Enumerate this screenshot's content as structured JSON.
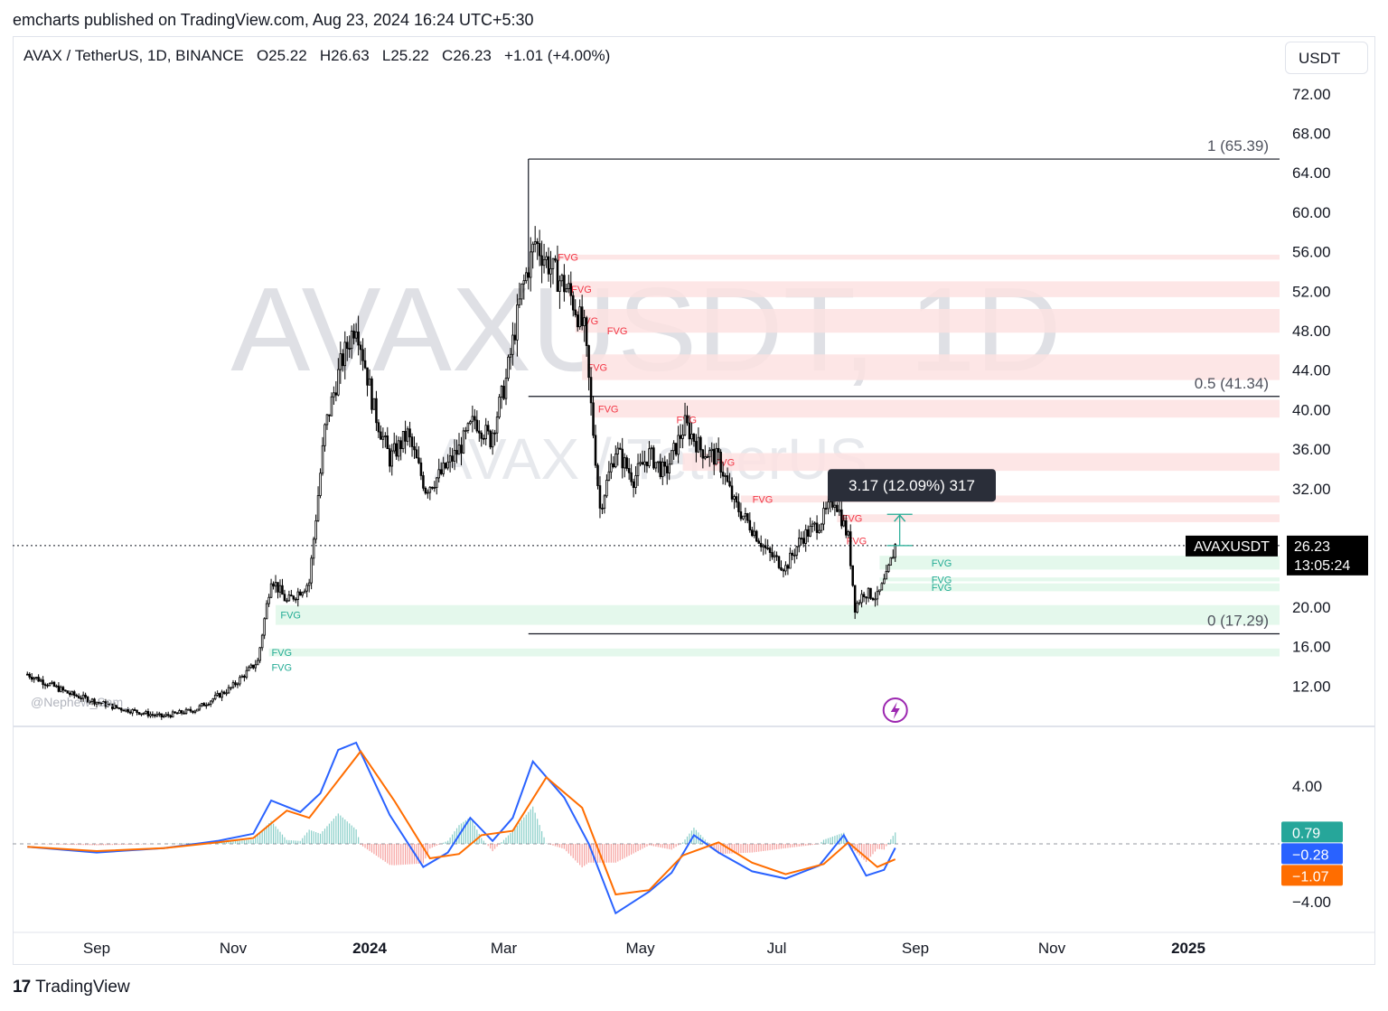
{
  "header": {
    "published_by": "emcharts published on TradingView.com, Aug 23, 2024 16:24 UTC+5:30"
  },
  "legend": {
    "symbol": "AVAX / TetherUS, 1D, BINANCE",
    "open": "O25.22",
    "high": "H26.63",
    "low": "L25.22",
    "close": "C26.23",
    "change": "+1.01 (+4.00%)"
  },
  "currency_button": "USDT",
  "watermark": {
    "main": "AVAXUSDT, 1D",
    "sub": "AVAX / TetherUS"
  },
  "author_tag": "@Nephew_Sam_",
  "footer": {
    "brand": "TradingView",
    "mark": "17"
  },
  "colors": {
    "bear_fvg": "#fde2e2",
    "bull_fvg": "#dff7e9",
    "bear_label": "#f23645",
    "bull_label": "#22ab94",
    "macd": "#2962ff",
    "signal": "#ff6d00",
    "hist_pos": "#26a69a",
    "hist_neg": "#ef5350",
    "last_price_bg": "#000000"
  },
  "chart_data": [
    {
      "type": "candlestick",
      "title": "AVAXUSDT, 1D",
      "ylim": [
        8,
        74
      ],
      "y_ticks": [
        "12.00",
        "16.00",
        "20.00",
        "24.00",
        "28.00",
        "32.00",
        "36.00",
        "40.00",
        "44.00",
        "48.00",
        "52.00",
        "56.00",
        "60.00",
        "64.00",
        "68.00",
        "72.00"
      ],
      "x_ticks": [
        "Sep",
        "Nov",
        "2024",
        "Mar",
        "May",
        "Jul",
        "Sep",
        "Nov",
        "2025"
      ],
      "x_tick_dates": [
        "2023-09-01",
        "2023-11-01",
        "2024-01-01",
        "2024-03-01",
        "2024-05-01",
        "2024-07-01",
        "2024-09-01",
        "2024-11-01",
        "2025-01-01"
      ],
      "price_keypoints": [
        [
          "2023-08-01",
          13.2
        ],
        [
          "2023-08-20",
          11.2
        ],
        [
          "2023-09-10",
          9.8
        ],
        [
          "2023-09-30",
          8.9
        ],
        [
          "2023-10-15",
          9.6
        ],
        [
          "2023-10-31",
          11.8
        ],
        [
          "2023-11-12",
          14.5
        ],
        [
          "2023-11-18",
          23.0
        ],
        [
          "2023-11-25",
          20.5
        ],
        [
          "2023-12-05",
          22.5
        ],
        [
          "2023-12-12",
          38.0
        ],
        [
          "2023-12-19",
          44.5
        ],
        [
          "2023-12-26",
          49.0
        ],
        [
          "2024-01-03",
          40.0
        ],
        [
          "2024-01-10",
          35.0
        ],
        [
          "2024-01-18",
          37.5
        ],
        [
          "2024-01-26",
          32.0
        ],
        [
          "2024-02-02",
          33.5
        ],
        [
          "2024-02-10",
          36.0
        ],
        [
          "2024-02-17",
          39.0
        ],
        [
          "2024-02-24",
          37.0
        ],
        [
          "2024-03-02",
          43.0
        ],
        [
          "2024-03-09",
          52.0
        ],
        [
          "2024-03-15",
          57.0
        ],
        [
          "2024-03-23",
          54.0
        ],
        [
          "2024-03-30",
          52.0
        ],
        [
          "2024-04-06",
          48.0
        ],
        [
          "2024-04-13",
          30.0
        ],
        [
          "2024-04-20",
          36.0
        ],
        [
          "2024-04-28",
          33.0
        ],
        [
          "2024-05-05",
          35.5
        ],
        [
          "2024-05-12",
          33.5
        ],
        [
          "2024-05-21",
          38.5
        ],
        [
          "2024-05-28",
          36.0
        ],
        [
          "2024-06-05",
          35.0
        ],
        [
          "2024-06-12",
          30.5
        ],
        [
          "2024-06-20",
          28.0
        ],
        [
          "2024-06-27",
          25.5
        ],
        [
          "2024-07-05",
          24.0
        ],
        [
          "2024-07-12",
          27.0
        ],
        [
          "2024-07-20",
          28.5
        ],
        [
          "2024-07-27",
          31.0
        ],
        [
          "2024-08-02",
          27.0
        ],
        [
          "2024-08-05",
          20.0
        ],
        [
          "2024-08-09",
          21.5
        ],
        [
          "2024-08-15",
          21.0
        ],
        [
          "2024-08-19",
          23.0
        ],
        [
          "2024-08-23",
          26.23
        ]
      ],
      "current_price": {
        "label": "AVAXUSDT",
        "value": "26.23",
        "countdown": "13:05:24",
        "value_num": 26.23
      },
      "fibonacci": [
        {
          "label": "1 (65.39)",
          "value": 65.39
        },
        {
          "label": "0.5 (41.34)",
          "value": 41.34
        },
        {
          "label": "0 (17.29)",
          "value": 17.29
        }
      ],
      "fib_start_date": "2024-03-12",
      "fvg_zones": [
        {
          "kind": "bear",
          "low": 55.2,
          "high": 55.7,
          "start": "2024-03-25",
          "label_date": "2024-03-30"
        },
        {
          "kind": "bear",
          "low": 51.4,
          "high": 53.0,
          "start": "2024-03-30",
          "label_date": "2024-04-05"
        },
        {
          "kind": "bear",
          "low": 47.8,
          "high": 50.2,
          "start": "2024-04-02",
          "label_date": "2024-04-08"
        },
        {
          "kind": "bear",
          "low": 43.0,
          "high": 45.6,
          "start": "2024-04-05",
          "label_date": "2024-04-12"
        },
        {
          "kind": "bear",
          "low": 39.2,
          "high": 41.0,
          "start": "2024-04-10",
          "label_date": "2024-04-17"
        },
        {
          "kind": "bear",
          "low": 33.8,
          "high": 35.6,
          "start": "2024-05-20",
          "label_date": "2024-06-08"
        },
        {
          "kind": "bear",
          "low": 30.6,
          "high": 31.3,
          "start": "2024-06-15",
          "label_date": "2024-06-25"
        },
        {
          "kind": "bear",
          "low": 28.6,
          "high": 29.4,
          "start": "2024-07-28",
          "label_date": "2024-08-04"
        },
        {
          "kind": "bull",
          "low": 23.8,
          "high": 25.2,
          "start": "2024-08-16",
          "label_date": "2024-09-13"
        },
        {
          "kind": "bull",
          "low": 22.6,
          "high": 23.0,
          "start": "2024-08-16",
          "label_date": "2024-09-13"
        },
        {
          "kind": "bull",
          "low": 21.6,
          "high": 22.4,
          "start": "2024-08-16",
          "label_date": "2024-09-13"
        },
        {
          "kind": "bull",
          "low": 18.2,
          "high": 20.2,
          "start": "2023-11-20",
          "label_date": "2023-11-27"
        },
        {
          "kind": "bull",
          "low": 15.0,
          "high": 15.8,
          "start": "2023-11-17",
          "label_date": "2023-11-23"
        }
      ],
      "fvg_extra_labels": [
        {
          "kind": "bear",
          "date": "2024-04-21",
          "value": 48.0
        },
        {
          "kind": "bear",
          "date": "2024-05-22",
          "value": 39.0
        },
        {
          "kind": "bear",
          "date": "2024-08-06",
          "value": 26.7
        },
        {
          "kind": "bull",
          "date": "2023-11-23",
          "value": 13.9
        }
      ],
      "fvg_text": "FVG",
      "measure": {
        "label": "3.17 (12.09%) 317",
        "from_value": 26.23,
        "to_value": 29.4,
        "date": "2024-08-25"
      },
      "lightning_marker_date": "2024-08-23"
    },
    {
      "type": "line",
      "title": "MACD",
      "ylim": [
        -6,
        8
      ],
      "y_ticks": [
        "4.00",
        "−4.00"
      ],
      "y_tick_values": [
        4,
        -4
      ],
      "series": [
        {
          "name": "macd",
          "color": "#2962ff",
          "points": [
            [
              "2023-08-01",
              -0.2
            ],
            [
              "2023-09-01",
              -0.6
            ],
            [
              "2023-10-01",
              -0.3
            ],
            [
              "2023-10-25",
              0.2
            ],
            [
              "2023-11-10",
              0.7
            ],
            [
              "2023-11-18",
              3.0
            ],
            [
              "2023-12-01",
              2.2
            ],
            [
              "2023-12-10",
              3.5
            ],
            [
              "2023-12-18",
              6.5
            ],
            [
              "2023-12-26",
              7.0
            ],
            [
              "2024-01-10",
              2.0
            ],
            [
              "2024-01-25",
              -1.6
            ],
            [
              "2024-02-05",
              -0.6
            ],
            [
              "2024-02-15",
              1.8
            ],
            [
              "2024-02-25",
              0.2
            ],
            [
              "2024-03-05",
              1.8
            ],
            [
              "2024-03-14",
              5.7
            ],
            [
              "2024-03-28",
              3.2
            ],
            [
              "2024-04-08",
              0.0
            ],
            [
              "2024-04-20",
              -4.8
            ],
            [
              "2024-05-05",
              -3.3
            ],
            [
              "2024-05-15",
              -2.0
            ],
            [
              "2024-05-25",
              0.6
            ],
            [
              "2024-06-05",
              -0.6
            ],
            [
              "2024-06-20",
              -1.9
            ],
            [
              "2024-07-05",
              -2.4
            ],
            [
              "2024-07-20",
              -1.5
            ],
            [
              "2024-07-31",
              0.6
            ],
            [
              "2024-08-10",
              -2.2
            ],
            [
              "2024-08-18",
              -1.8
            ],
            [
              "2024-08-23",
              -0.28
            ]
          ]
        },
        {
          "name": "signal",
          "color": "#ff6d00",
          "points": [
            [
              "2023-08-01",
              -0.2
            ],
            [
              "2023-09-01",
              -0.5
            ],
            [
              "2023-10-01",
              -0.3
            ],
            [
              "2023-10-25",
              0.1
            ],
            [
              "2023-11-10",
              0.4
            ],
            [
              "2023-11-25",
              2.3
            ],
            [
              "2023-12-05",
              1.8
            ],
            [
              "2023-12-15",
              3.8
            ],
            [
              "2023-12-28",
              6.4
            ],
            [
              "2024-01-12",
              3.0
            ],
            [
              "2024-01-28",
              -1.0
            ],
            [
              "2024-02-10",
              -0.7
            ],
            [
              "2024-02-20",
              0.6
            ],
            [
              "2024-03-05",
              0.9
            ],
            [
              "2024-03-20",
              4.6
            ],
            [
              "2024-04-05",
              2.5
            ],
            [
              "2024-04-20",
              -3.5
            ],
            [
              "2024-05-05",
              -3.2
            ],
            [
              "2024-05-20",
              -0.8
            ],
            [
              "2024-06-05",
              0.1
            ],
            [
              "2024-06-20",
              -1.3
            ],
            [
              "2024-07-05",
              -2.1
            ],
            [
              "2024-07-22",
              -1.4
            ],
            [
              "2024-08-02",
              0.1
            ],
            [
              "2024-08-15",
              -1.6
            ],
            [
              "2024-08-23",
              -1.07
            ]
          ]
        }
      ],
      "histogram_last": 0.79,
      "labels": [
        {
          "text": "0.79",
          "color": "#26a69a",
          "value": 0.79
        },
        {
          "text": "−0.28",
          "color": "#2962ff",
          "value": -0.28
        },
        {
          "text": "−1.07",
          "color": "#ff6d00",
          "value": -1.07
        }
      ]
    }
  ]
}
